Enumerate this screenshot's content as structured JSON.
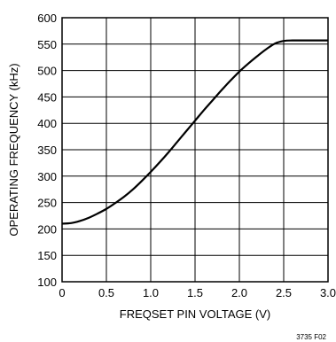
{
  "chart_data": {
    "type": "line",
    "title": "",
    "xlabel": "FREQSET PIN VOLTAGE (V)",
    "ylabel": "OPERATING FREQUENCY (kHz)",
    "xlim": [
      0,
      3.0
    ],
    "ylim": [
      100,
      600
    ],
    "x_ticks": [
      0,
      0.5,
      1.0,
      1.5,
      2.0,
      2.5,
      3.0
    ],
    "x_tick_labels": [
      "0",
      "0.5",
      "1.0",
      "1.5",
      "2.0",
      "2.5",
      "3.0"
    ],
    "y_ticks": [
      100,
      150,
      200,
      250,
      300,
      350,
      400,
      450,
      500,
      550,
      600
    ],
    "y_tick_labels": [
      "100",
      "150",
      "200",
      "250",
      "300",
      "350",
      "400",
      "450",
      "500",
      "550",
      "600"
    ],
    "grid": true,
    "line_color": "#000000",
    "series": [
      {
        "x": [
          0,
          0.1,
          0.2,
          0.3,
          0.4,
          0.5,
          0.6,
          0.7,
          0.8,
          0.9,
          1.0,
          1.1,
          1.2,
          1.3,
          1.4,
          1.5,
          1.6,
          1.7,
          1.8,
          1.9,
          2.0,
          2.1,
          2.2,
          2.3,
          2.4,
          2.5,
          2.6,
          2.8,
          3.0
        ],
        "y": [
          210,
          211,
          215,
          221,
          229,
          238,
          249,
          261,
          275,
          291,
          308,
          326,
          345,
          365,
          385,
          405,
          425,
          444,
          463,
          481,
          498,
          513,
          527,
          540,
          551,
          556,
          557,
          557,
          557
        ]
      }
    ]
  },
  "figure_id": "3735 F02"
}
